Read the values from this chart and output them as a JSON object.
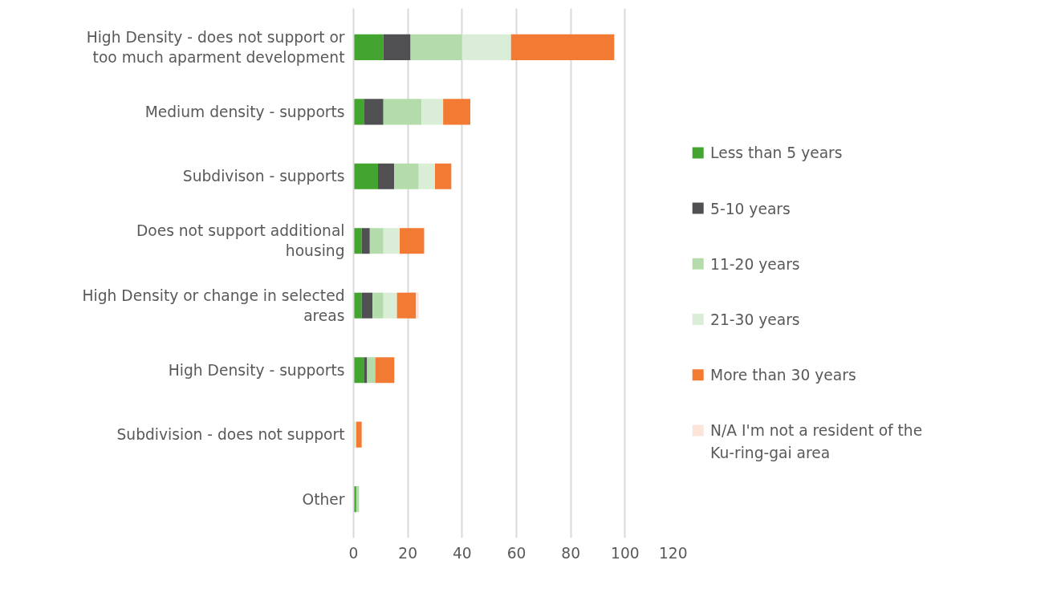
{
  "chart_data": {
    "type": "bar",
    "orientation": "horizontal",
    "stacked": true,
    "categories": [
      "High Density - does not support or too much aparment development",
      "Medium density - supports",
      "Subdivison - supports",
      "Does not support additional housing",
      "High Density or change in selected areas",
      "High Density - supports ",
      "Subdivision - does not support",
      "Other"
    ],
    "series": [
      {
        "name": "Less than 5 years",
        "color": "#43a52f",
        "values": [
          11,
          4,
          9,
          3,
          3,
          4,
          0,
          1
        ]
      },
      {
        "name": "5-10 years",
        "color": "#505052",
        "values": [
          10,
          7,
          6,
          3,
          4,
          1,
          0,
          0
        ]
      },
      {
        "name": "11-20 years",
        "color": "#b4dcaa",
        "values": [
          19,
          14,
          9,
          5,
          4,
          3,
          0,
          1
        ]
      },
      {
        "name": "21-30 years",
        "color": "#daedd6",
        "values": [
          18,
          8,
          6,
          6,
          5,
          0,
          1,
          0
        ]
      },
      {
        "name": "More than 30 years",
        "color": "#f27a33",
        "values": [
          38,
          10,
          6,
          9,
          7,
          7,
          2,
          0
        ]
      },
      {
        "name": "N/A I'm not a resident of the Ku-ring-gai area",
        "color": "#fce4d9",
        "values": [
          0,
          0,
          0,
          0,
          1,
          0,
          0,
          0
        ]
      }
    ],
    "xlim": [
      0,
      120
    ],
    "xticks": [
      0,
      20,
      40,
      60,
      80,
      100,
      120
    ],
    "grid": "x",
    "legend": "right"
  }
}
